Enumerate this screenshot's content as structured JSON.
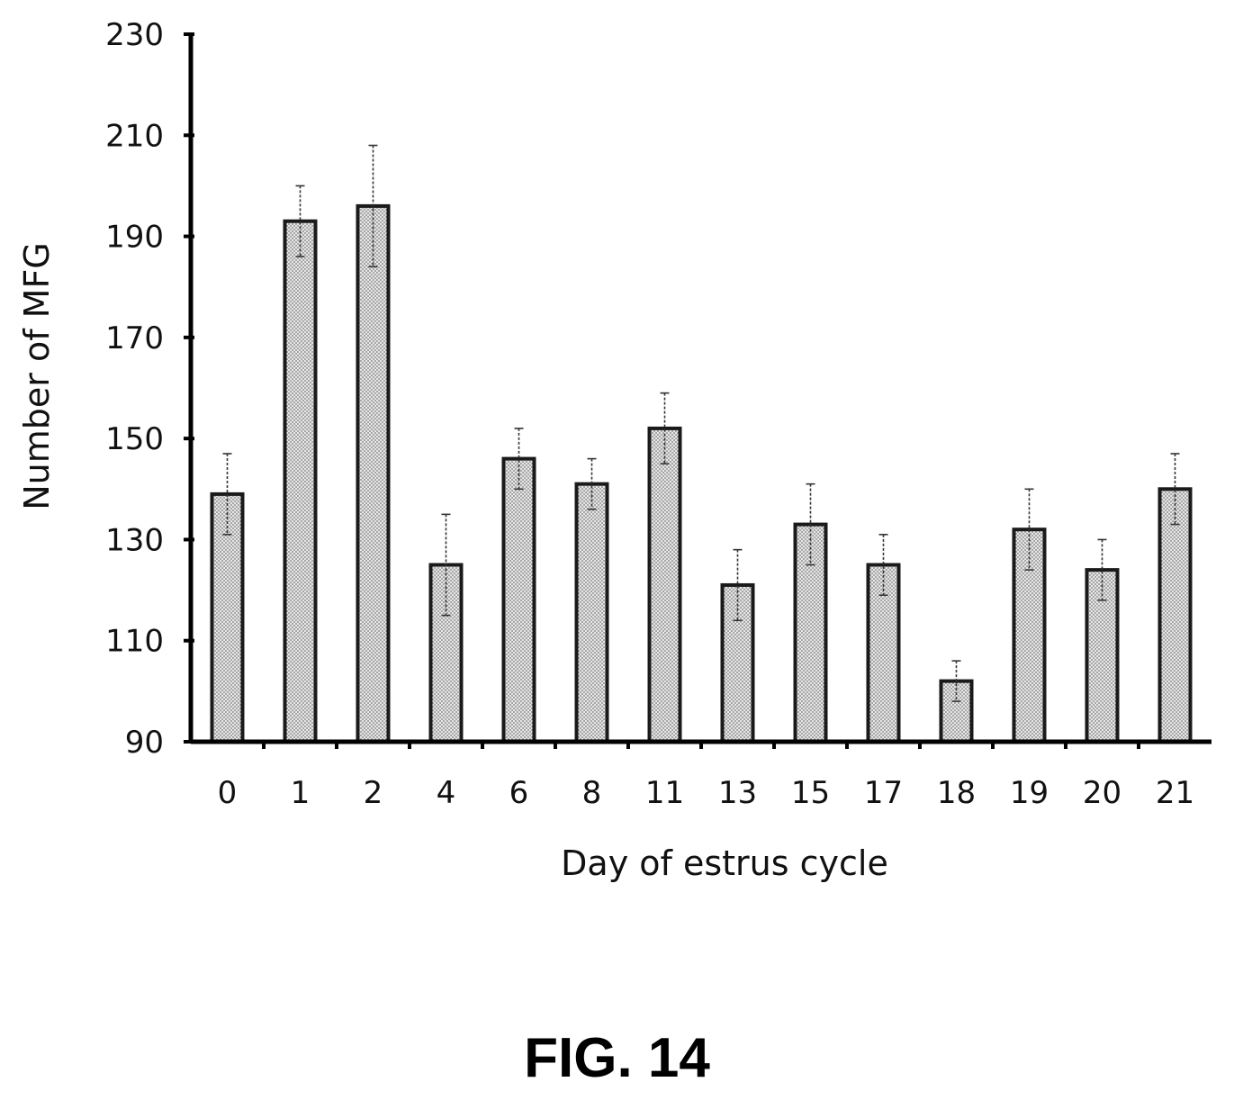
{
  "figure": {
    "caption": "FIG. 14"
  },
  "chart_data": {
    "type": "bar",
    "title": "",
    "xlabel": "Day of estrus cycle",
    "ylabel": "Number of MFG",
    "categories": [
      "0",
      "1",
      "2",
      "4",
      "6",
      "8",
      "11",
      "13",
      "15",
      "17",
      "18",
      "19",
      "20",
      "21"
    ],
    "values": [
      139,
      193,
      196,
      125,
      146,
      141,
      152,
      121,
      133,
      125,
      102,
      132,
      124,
      140
    ],
    "error": [
      8,
      7,
      12,
      10,
      6,
      5,
      7,
      7,
      8,
      6,
      4,
      8,
      6,
      7
    ],
    "ylim": [
      90,
      230
    ],
    "yticks": [
      90,
      110,
      130,
      150,
      170,
      190,
      210,
      230
    ],
    "grid": false,
    "legend": "none",
    "colors": {
      "bar_fill": "#d9d9d9",
      "bar_stroke": "#1a1a1a",
      "axis": "#000000"
    }
  }
}
